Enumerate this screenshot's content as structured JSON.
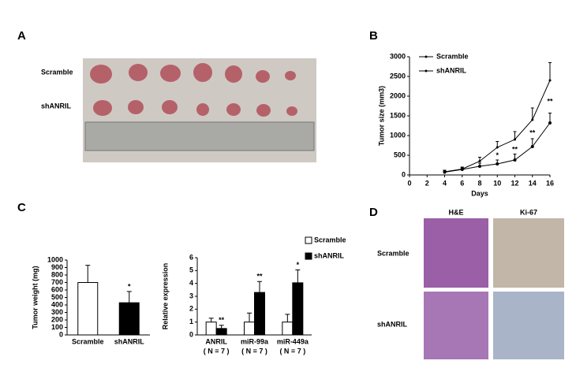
{
  "panel_letters": [
    "A",
    "B",
    "C",
    "D"
  ],
  "panel_a": {
    "row_labels": [
      "Scramble",
      "shANRIL"
    ]
  },
  "panel_d": {
    "col_labels": [
      "H&E",
      "Ki-67"
    ],
    "row_labels": [
      "Scramble",
      "shANRIL"
    ]
  },
  "chart_data": [
    {
      "type": "line",
      "x": [
        4,
        6,
        8,
        10,
        12,
        14,
        16
      ],
      "series": [
        {
          "name": "Scramble",
          "color": "#000000",
          "values": [
            80,
            150,
            350,
            700,
            900,
            1400,
            2400
          ],
          "errors": [
            40,
            50,
            100,
            150,
            200,
            300,
            450
          ]
        },
        {
          "name": "shANRIL",
          "color": "#000000",
          "values": [
            70,
            140,
            220,
            280,
            380,
            720,
            1320
          ],
          "errors": [
            30,
            40,
            80,
            100,
            150,
            200,
            250
          ]
        }
      ],
      "significance": [
        null,
        null,
        null,
        "*",
        "**",
        "**",
        "**"
      ],
      "xlim": [
        0,
        16
      ],
      "xticks": [
        0,
        2,
        4,
        6,
        8,
        10,
        12,
        14,
        16
      ],
      "ylim": [
        0,
        3000
      ],
      "yticks": [
        0,
        500,
        1000,
        1500,
        2000,
        2500,
        3000
      ],
      "xlabel": "Days",
      "ylabel": "Tumor size (mm3)",
      "legend": "upper left"
    },
    {
      "type": "bar",
      "categories": [
        "Scramble",
        "shANRIL"
      ],
      "values": [
        700,
        430
      ],
      "errors": [
        230,
        150
      ],
      "colors": [
        "#ffffff",
        "#000000"
      ],
      "significance": [
        null,
        "*"
      ],
      "ylim": [
        0,
        1000
      ],
      "yticks": [
        0,
        100,
        200,
        300,
        400,
        500,
        600,
        700,
        800,
        900,
        1000
      ],
      "ylabel": "Tumor weight (mg)"
    },
    {
      "type": "bar",
      "categories": [
        "ANRIL",
        "miR-99a",
        "miR-449a"
      ],
      "category_notes": [
        "( N = 7 )",
        "( N = 7 )",
        "( N = 7 )"
      ],
      "series": [
        {
          "name": "Scramble",
          "color": "#ffffff",
          "values": [
            1,
            1,
            1
          ],
          "errors": [
            0.3,
            0.7,
            0.6
          ]
        },
        {
          "name": "shANRIL",
          "color": "#000000",
          "values": [
            0.5,
            3.3,
            4.05
          ],
          "errors": [
            0.25,
            0.85,
            1.0
          ]
        }
      ],
      "significance": [
        "**",
        "**",
        "*"
      ],
      "ylim": [
        0,
        6
      ],
      "yticks": [
        0,
        1,
        2,
        3,
        4,
        5,
        6
      ],
      "ylabel": "Relative  expression",
      "legend": "upper right"
    }
  ]
}
